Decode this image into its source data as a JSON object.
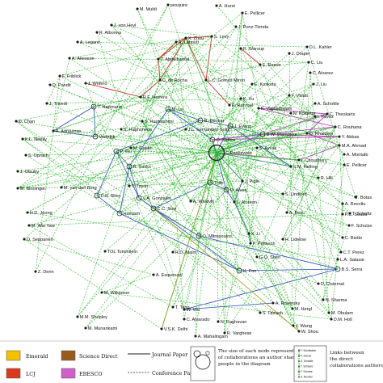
{
  "nodes": [
    {
      "name": "pesquire"
    },
    {
      "name": "A. Hurst"
    },
    {
      "name": "M. Muldi"
    },
    {
      "name": "E. Pellicer"
    },
    {
      "name": "J. von Heyl"
    },
    {
      "name": "J. Ponz-Tienda"
    },
    {
      "name": "R. Albonna"
    },
    {
      "name": "A. Legard"
    },
    {
      "name": "A. Lahouti"
    },
    {
      "name": "S. Levy"
    },
    {
      "name": "X. Zhou"
    },
    {
      "name": "R. Waroup"
    },
    {
      "name": "T. Abdelhamid"
    },
    {
      "name": "J. Draper"
    },
    {
      "name": "D.L. Kahler"
    },
    {
      "name": "C. Liu"
    },
    {
      "name": "A. Akesson"
    },
    {
      "name": "C. de Rocha"
    },
    {
      "name": "L.C. Gomes Miron"
    },
    {
      "name": "E. Reeve"
    },
    {
      "name": "F. Friblick"
    },
    {
      "name": "J. Wofero"
    },
    {
      "name": "C. Alvarez"
    },
    {
      "name": "J. Liu"
    },
    {
      "name": "D. Pandit"
    },
    {
      "name": "E. Koskela"
    },
    {
      "name": "A. Schottle"
    },
    {
      "name": "R.F. Herrera"
    },
    {
      "name": "E. Ronroel"
    },
    {
      "name": "F. Vhiatt"
    },
    {
      "name": "K. Xu"
    },
    {
      "name": "J. Trivedi"
    },
    {
      "name": "T. Hartmann"
    },
    {
      "name": "I. Pavez"
    },
    {
      "name": "K. Vajjhatbalam"
    },
    {
      "name": "N. Kolantor"
    },
    {
      "name": "C. Theokaris"
    },
    {
      "name": "D. Chan"
    },
    {
      "name": "A. Adriaanse"
    },
    {
      "name": "M. Le"
    },
    {
      "name": "R. Devkar"
    },
    {
      "name": "C. Rouhana"
    },
    {
      "name": "S. Hashashimi"
    },
    {
      "name": "S. Haghsheno"
    },
    {
      "name": "J.L. Fernandez-Solis"
    },
    {
      "name": "J. Evans"
    },
    {
      "name": "B.W. Wambeke"
    },
    {
      "name": "D. Rhaiders"
    },
    {
      "name": "Y. Abbas"
    },
    {
      "name": "K.L. Neelly"
    },
    {
      "name": "Voordijk"
    },
    {
      "name": "M. Goldin"
    },
    {
      "name": "O. Salhor"
    },
    {
      "name": "M.A. Ahmad"
    },
    {
      "name": "S. Ayvak"
    },
    {
      "name": "I. Choudhary"
    },
    {
      "name": "A. Montalb"
    },
    {
      "name": "S. Oprach"
    },
    {
      "name": "P. Wu"
    },
    {
      "name": "C.Pepkowski"
    },
    {
      "name": "S.M. Helling"
    },
    {
      "name": "E. Pellicer"
    },
    {
      "name": "J. Olsuby"
    },
    {
      "name": "R. Sacks"
    },
    {
      "name": "J. Pigle"
    },
    {
      "name": "R. Hill"
    },
    {
      "name": "M. Binninger"
    },
    {
      "name": "M. van den Berg"
    },
    {
      "name": "T. Tyson"
    },
    {
      "name": "T. de"
    },
    {
      "name": "O. Alves"
    },
    {
      "name": "S. Lindford"
    },
    {
      "name": "T. Botas"
    },
    {
      "name": "A. Revoltu"
    },
    {
      "name": "D.R. Riley"
    },
    {
      "name": "V.A. Gonzales"
    },
    {
      "name": "A. Wiedvill"
    },
    {
      "name": "L. Aloreon"
    },
    {
      "name": "A. Best"
    },
    {
      "name": "P.C. Souza"
    },
    {
      "name": "H.D. Jeong"
    },
    {
      "name": "Hamzeh"
    },
    {
      "name": "C.C. Sow"
    },
    {
      "name": "T. Scholtz"
    },
    {
      "name": "F. Schulze"
    },
    {
      "name": "M. Wai Yaw"
    },
    {
      "name": "O. Mitropoulos"
    },
    {
      "name": "X. Li"
    },
    {
      "name": "H. Lidelow"
    },
    {
      "name": "C. Biotto"
    },
    {
      "name": "O. Seppanen"
    },
    {
      "name": "TOL Tommilein"
    },
    {
      "name": "R.D. Malm"
    },
    {
      "name": "P. Pottesch"
    },
    {
      "name": "G.Q. Shen"
    },
    {
      "name": "C.T. Perez"
    },
    {
      "name": "L.A. Salazar"
    },
    {
      "name": "Z. Derin"
    },
    {
      "name": "A. Esquenazi"
    },
    {
      "name": "H. Fon"
    },
    {
      "name": "B.S. Serra"
    },
    {
      "name": "M. Wilkinson"
    },
    {
      "name": "D. Cisternal"
    },
    {
      "name": "T. Tang"
    },
    {
      "name": "W. Wu"
    },
    {
      "name": "A. Rowinsky"
    },
    {
      "name": "M. Hergl"
    },
    {
      "name": "M.M. Shepley"
    },
    {
      "name": "C. Alvarado"
    },
    {
      "name": "S. Oprach"
    },
    {
      "name": "N. Sharma"
    },
    {
      "name": "M. Obulam"
    },
    {
      "name": "N. Raghavan"
    },
    {
      "name": "D.M. Holl"
    },
    {
      "name": "M. Munankami"
    },
    {
      "name": "W. Shou"
    },
    {
      "name": "J. Wang"
    },
    {
      "name": "V.S.K. Delhi"
    },
    {
      "name": "R. Varghese"
    },
    {
      "name": "A. Mahalingam"
    }
  ],
  "legend": {
    "emerald": {
      "label": "Emerald",
      "color": "#f2c200"
    },
    "science_direct": {
      "label": "Science Direct",
      "color": "#9a5a1e"
    },
    "lcj": {
      "label": "LCJ",
      "color": "#d93a1e"
    },
    "ebesco": {
      "label": "EBESCO",
      "color": "#d05fc9"
    },
    "journal_paper": "Journal Paper",
    "conference_paper": "Conference Paper",
    "size_note": "The size of each node represents the number of collaborations an author shares with other people in the diagram",
    "links_note": "Links between the direct collaborations authors",
    "mini_labels": [
      "F. Schottstein",
      "P. Schulz",
      "A. Schottle",
      "T. Schwarz",
      "F. Schulze",
      "A. Revoltu"
    ]
  },
  "colors": {
    "green": "#2ebb2e",
    "blue": "#1f3bbf",
    "red": "#d42020",
    "magenta": "#c030c0",
    "olive": "#a89a20"
  }
}
